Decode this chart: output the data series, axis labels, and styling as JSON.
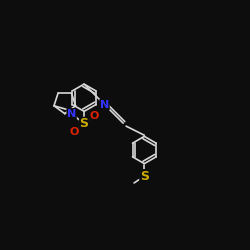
{
  "bg_color": "#0d0d0d",
  "bond_color": "#d8d8d8",
  "bond_width": 1.2,
  "N_color": "#3333ff",
  "S_color": "#ccaa00",
  "O_color": "#dd2200",
  "font_size": 8,
  "figsize": [
    2.5,
    2.5
  ],
  "dpi": 100,
  "xlim": [
    -2.5,
    8.5
  ],
  "ylim": [
    -8.5,
    2.5
  ]
}
